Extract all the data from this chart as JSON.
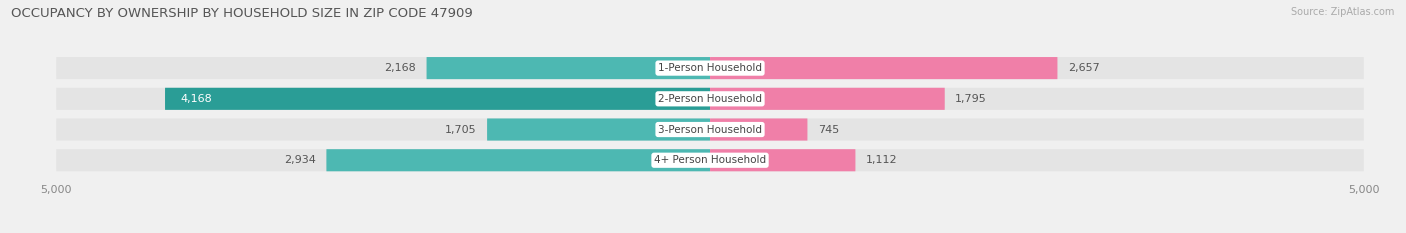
{
  "title": "OCCUPANCY BY OWNERSHIP BY HOUSEHOLD SIZE IN ZIP CODE 47909",
  "source": "Source: ZipAtlas.com",
  "categories": [
    "1-Person Household",
    "2-Person Household",
    "3-Person Household",
    "4+ Person Household"
  ],
  "owner_values": [
    2168,
    4168,
    1705,
    2934
  ],
  "renter_values": [
    2657,
    1795,
    745,
    1112
  ],
  "owner_color": "#4db8b2",
  "owner_color2": "#2a9d96",
  "renter_color": "#f07fa8",
  "axis_max": 5000,
  "bar_height": 0.72,
  "background_color": "#f0f0f0",
  "row_bg_color": "#e4e4e4",
  "title_fontsize": 9.5,
  "source_fontsize": 7,
  "label_fontsize": 8,
  "category_fontsize": 7.5,
  "value_color": "#555555"
}
